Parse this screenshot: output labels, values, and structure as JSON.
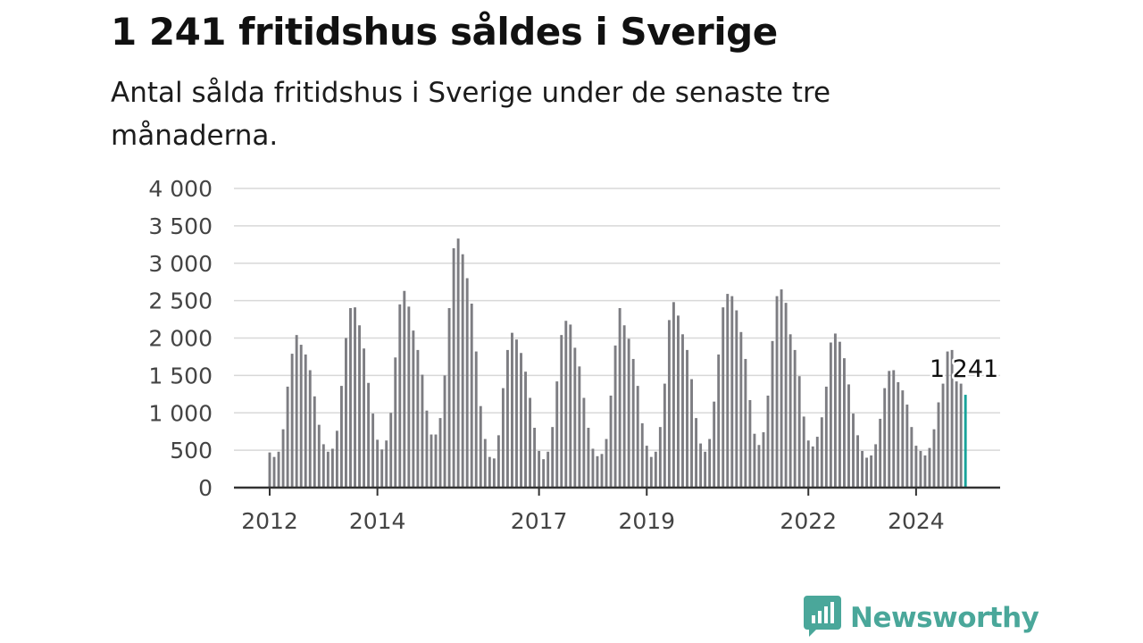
{
  "header": {
    "title": "1 241 fritidshus såldes i Sverige",
    "subtitle": "Antal sålda fritidshus i Sverige under de senaste tre månaderna."
  },
  "brand": {
    "name": "Newsworthy",
    "icon": "newsworthy-logo-icon",
    "color": "#4aa79a"
  },
  "colors": {
    "bar": "#7d7d82",
    "highlight": "#18a39a",
    "grid": "#d8d8d8",
    "axis": "#333333"
  },
  "chart_data": {
    "type": "bar",
    "title": "1 241 fritidshus såldes i Sverige",
    "subtitle": "Antal sålda fritidshus i Sverige under de senaste tre månaderna.",
    "xlabel": "",
    "ylabel": "",
    "ylim": [
      0,
      4000
    ],
    "yticks": [
      {
        "value": 0,
        "label": "0"
      },
      {
        "value": 500,
        "label": "500"
      },
      {
        "value": 1000,
        "label": "1 000"
      },
      {
        "value": 1500,
        "label": "1 500"
      },
      {
        "value": 2000,
        "label": "2 000"
      },
      {
        "value": 2500,
        "label": "2 500"
      },
      {
        "value": 3000,
        "label": "3 000"
      },
      {
        "value": 3500,
        "label": "3 500"
      },
      {
        "value": 4000,
        "label": "4 000"
      }
    ],
    "xticks": [
      {
        "label": "2012",
        "index": 0
      },
      {
        "label": "2014",
        "index": 24
      },
      {
        "label": "2017",
        "index": 60
      },
      {
        "label": "2019",
        "index": 84
      },
      {
        "label": "2022",
        "index": 120
      },
      {
        "label": "2024",
        "index": 144
      }
    ],
    "grid": true,
    "legend": "none",
    "start": "2012-01",
    "frequency": "monthly",
    "values": [
      470,
      410,
      480,
      780,
      1350,
      1790,
      2040,
      1910,
      1780,
      1570,
      1220,
      840,
      580,
      480,
      520,
      760,
      1360,
      2000,
      2400,
      2410,
      2170,
      1860,
      1400,
      990,
      640,
      510,
      630,
      1000,
      1740,
      2450,
      2630,
      2420,
      2100,
      1840,
      1510,
      1030,
      710,
      710,
      930,
      1500,
      2400,
      3200,
      3330,
      3120,
      2800,
      2460,
      1820,
      1090,
      650,
      410,
      390,
      700,
      1330,
      1840,
      2070,
      1980,
      1800,
      1550,
      1200,
      800,
      490,
      380,
      480,
      810,
      1420,
      2040,
      2230,
      2180,
      1870,
      1620,
      1200,
      800,
      520,
      420,
      450,
      650,
      1230,
      1900,
      2400,
      2170,
      1990,
      1720,
      1360,
      860,
      560,
      410,
      480,
      810,
      1390,
      2240,
      2480,
      2300,
      2050,
      1840,
      1450,
      930,
      590,
      480,
      650,
      1150,
      1780,
      2410,
      2590,
      2560,
      2370,
      2080,
      1720,
      1170,
      720,
      570,
      740,
      1230,
      1960,
      2560,
      2650,
      2470,
      2050,
      1840,
      1490,
      950,
      630,
      550,
      680,
      940,
      1350,
      1940,
      2060,
      1950,
      1730,
      1380,
      990,
      700,
      490,
      400,
      430,
      580,
      920,
      1330,
      1560,
      1570,
      1410,
      1300,
      1110,
      810,
      560,
      490,
      430,
      530,
      780,
      1140,
      1390,
      1820,
      1840,
      1420,
      1390,
      1241
    ],
    "highlight": {
      "index": 155,
      "value": 1241,
      "label": "1 241"
    }
  }
}
